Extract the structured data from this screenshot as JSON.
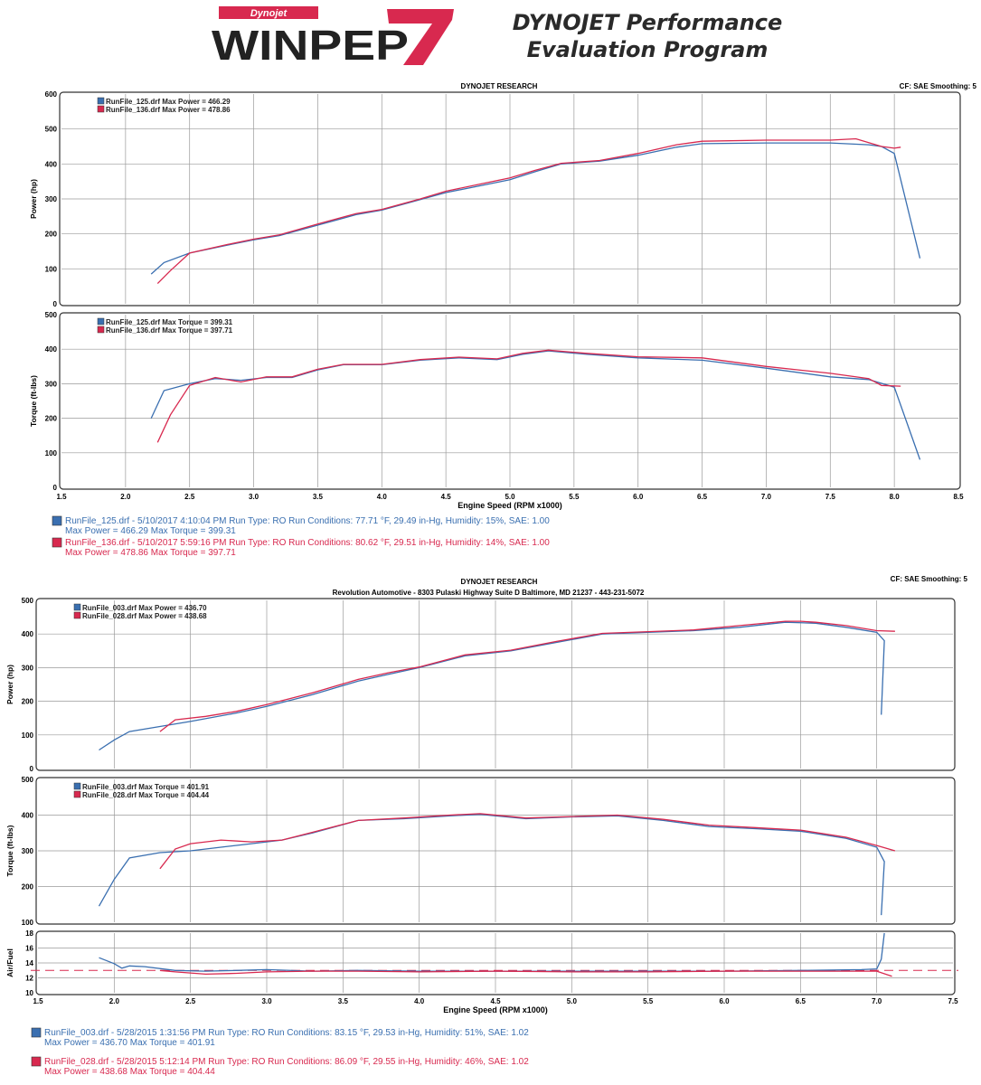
{
  "header": {
    "logo_small": "Dynojet",
    "logo_main": "WINPEP",
    "logo_number": "7",
    "title_line1": "DYNOJET Performance",
    "title_line2": "Evaluation Program"
  },
  "colors": {
    "blue": "#3a6fb0",
    "red": "#d8294f",
    "grid": "#9a9a9a",
    "frame": "#333333"
  },
  "chart_data": [
    {
      "id": "top",
      "type": "line",
      "title": "DYNOJET RESEARCH",
      "subtitle": "",
      "cf_text": "CF: SAE  Smoothing: 5",
      "xlabel": "Engine Speed (RPM x1000)",
      "xlim": [
        1.5,
        8.5
      ],
      "xticks": [
        "1.5",
        "2.0",
        "2.5",
        "3.0",
        "3.5",
        "4.0",
        "4.5",
        "5.0",
        "5.5",
        "6.0",
        "6.5",
        "7.0",
        "7.5",
        "8.0",
        "8.5"
      ],
      "panels": [
        {
          "ylabel": "Power (hp)",
          "ylim": [
            0,
            600
          ],
          "yticks": [
            "0",
            "100",
            "200",
            "300",
            "400",
            "500",
            "600"
          ],
          "legend": [
            {
              "color": "blue",
              "text": "RunFile_125.drf Max Power = 466.29"
            },
            {
              "color": "red",
              "text": "RunFile_136.drf Max Power = 478.86"
            }
          ],
          "series": [
            {
              "name": "RunFile_125.drf",
              "color": "blue",
              "x": [
                2.2,
                2.3,
                2.5,
                2.8,
                3.0,
                3.2,
                3.5,
                3.8,
                4.0,
                4.3,
                4.5,
                4.8,
                5.0,
                5.2,
                5.4,
                5.7,
                6.0,
                6.3,
                6.5,
                7.0,
                7.5,
                7.8,
                7.9,
                8.0,
                8.2
              ],
              "y": [
                85,
                118,
                145,
                168,
                183,
                195,
                225,
                255,
                268,
                298,
                318,
                340,
                355,
                378,
                400,
                408,
                425,
                448,
                458,
                460,
                460,
                455,
                450,
                430,
                130
              ]
            },
            {
              "name": "RunFile_136.drf",
              "color": "red",
              "x": [
                2.25,
                2.35,
                2.5,
                2.8,
                3.0,
                3.2,
                3.5,
                3.8,
                4.0,
                4.3,
                4.5,
                4.8,
                5.0,
                5.2,
                5.4,
                5.7,
                6.0,
                6.3,
                6.5,
                7.0,
                7.5,
                7.7,
                7.9,
                8.0,
                8.05
              ],
              "y": [
                58,
                95,
                145,
                170,
                185,
                197,
                228,
                258,
                270,
                300,
                322,
                345,
                360,
                382,
                402,
                410,
                430,
                455,
                465,
                468,
                468,
                472,
                450,
                445,
                448
              ]
            }
          ]
        },
        {
          "ylabel": "Torque (ft-lbs)",
          "ylim": [
            0,
            500
          ],
          "yticks": [
            "0",
            "100",
            "200",
            "300",
            "400",
            "500"
          ],
          "legend": [
            {
              "color": "blue",
              "text": "RunFile_125.drf Max Torque = 399.31"
            },
            {
              "color": "red",
              "text": "RunFile_136.drf Max Torque = 397.71"
            }
          ],
          "series": [
            {
              "name": "RunFile_125.drf",
              "color": "blue",
              "x": [
                2.2,
                2.3,
                2.5,
                2.7,
                2.9,
                3.1,
                3.3,
                3.5,
                3.7,
                4.0,
                4.3,
                4.6,
                4.9,
                5.1,
                5.3,
                5.6,
                6.0,
                6.5,
                7.0,
                7.5,
                7.8,
                8.0,
                8.2
              ],
              "y": [
                200,
                280,
                300,
                315,
                310,
                318,
                318,
                340,
                355,
                355,
                368,
                375,
                370,
                385,
                395,
                385,
                375,
                368,
                345,
                320,
                312,
                290,
                80
              ]
            },
            {
              "name": "RunFile_136.drf",
              "color": "red",
              "x": [
                2.25,
                2.35,
                2.5,
                2.7,
                2.9,
                3.1,
                3.3,
                3.5,
                3.7,
                4.0,
                4.3,
                4.6,
                4.9,
                5.1,
                5.3,
                5.6,
                6.0,
                6.5,
                7.0,
                7.5,
                7.8,
                7.9,
                8.05
              ],
              "y": [
                130,
                210,
                295,
                318,
                305,
                320,
                320,
                342,
                356,
                356,
                370,
                377,
                372,
                388,
                397,
                388,
                378,
                375,
                350,
                330,
                315,
                295,
                293
              ]
            }
          ]
        }
      ],
      "runs": [
        {
          "color": "blue",
          "line1": "RunFile_125.drf - 5/10/2017 4:10:04 PM  Run Type: RO  Run Conditions: 77.71 °F, 29.49 in-Hg,  Humidity:  15%, SAE: 1.00",
          "line2": "Max Power = 466.29  Max Torque = 399.31"
        },
        {
          "color": "red",
          "line1": "RunFile_136.drf - 5/10/2017 5:59:16 PM  Run Type: RO  Run Conditions: 80.62 °F, 29.51 in-Hg,  Humidity:  14%, SAE: 1.00",
          "line2": "Max Power = 478.86  Max Torque = 397.71"
        }
      ]
    },
    {
      "id": "bottom",
      "type": "line",
      "title": "DYNOJET RESEARCH",
      "subtitle": "Revolution Automotive - 8303 Pulaski Highway Suite D Baltimore, MD 21237 - 443-231-5072",
      "cf_text": "CF: SAE  Smoothing: 5",
      "xlabel": "Engine Speed (RPM x1000)",
      "xlim": [
        1.5,
        7.5
      ],
      "xticks": [
        "1.5",
        "2.0",
        "2.5",
        "3.0",
        "3.5",
        "4.0",
        "4.5",
        "5.0",
        "5.5",
        "6.0",
        "6.5",
        "7.0",
        "7.5"
      ],
      "panels": [
        {
          "ylabel": "Power (hp)",
          "ylim": [
            0,
            500
          ],
          "yticks": [
            "0",
            "100",
            "200",
            "300",
            "400",
            "500"
          ],
          "legend": [
            {
              "color": "blue",
              "text": "RunFile_003.drf Max Power = 436.70"
            },
            {
              "color": "red",
              "text": "RunFile_028.drf Max Power = 438.68"
            }
          ],
          "series": [
            {
              "name": "RunFile_003.drf",
              "color": "blue",
              "x": [
                1.9,
                2.0,
                2.1,
                2.3,
                2.5,
                2.8,
                3.0,
                3.3,
                3.6,
                3.8,
                4.0,
                4.3,
                4.6,
                4.9,
                5.2,
                5.5,
                5.8,
                6.1,
                6.4,
                6.6,
                6.8,
                7.0,
                7.05,
                7.03
              ],
              "y": [
                55,
                85,
                110,
                125,
                140,
                165,
                185,
                220,
                260,
                280,
                300,
                335,
                350,
                375,
                400,
                405,
                410,
                420,
                435,
                432,
                420,
                405,
                380,
                160
              ]
            },
            {
              "name": "RunFile_028.drf",
              "color": "red",
              "x": [
                2.3,
                2.4,
                2.6,
                2.8,
                3.0,
                3.3,
                3.6,
                3.8,
                4.0,
                4.3,
                4.6,
                4.9,
                5.2,
                5.5,
                5.8,
                6.1,
                6.4,
                6.5,
                6.6,
                6.8,
                7.0,
                7.12
              ],
              "y": [
                110,
                145,
                155,
                170,
                190,
                225,
                265,
                285,
                302,
                338,
                352,
                378,
                402,
                407,
                412,
                425,
                438,
                438,
                435,
                425,
                410,
                408
              ]
            }
          ]
        },
        {
          "ylabel": "Torque (ft-lbs)",
          "ylim": [
            100,
            500
          ],
          "yticks": [
            "100",
            "200",
            "300",
            "400",
            "500"
          ],
          "legend": [
            {
              "color": "blue",
              "text": "RunFile_003.drf Max Torque = 401.91"
            },
            {
              "color": "red",
              "text": "RunFile_028.drf Max Torque = 404.44"
            }
          ],
          "series": [
            {
              "name": "RunFile_003.drf",
              "color": "blue",
              "x": [
                1.9,
                2.0,
                2.1,
                2.3,
                2.5,
                2.7,
                2.9,
                3.1,
                3.3,
                3.6,
                3.9,
                4.2,
                4.4,
                4.7,
                5.0,
                5.3,
                5.6,
                5.9,
                6.2,
                6.5,
                6.8,
                7.0,
                7.05,
                7.03
              ],
              "y": [
                145,
                220,
                280,
                295,
                300,
                310,
                320,
                330,
                350,
                385,
                390,
                398,
                402,
                390,
                395,
                398,
                385,
                368,
                362,
                355,
                335,
                310,
                270,
                120
              ]
            },
            {
              "name": "RunFile_028.drf",
              "color": "red",
              "x": [
                2.3,
                2.4,
                2.5,
                2.7,
                2.9,
                3.1,
                3.3,
                3.6,
                3.9,
                4.2,
                4.4,
                4.7,
                5.0,
                5.3,
                5.6,
                5.9,
                6.2,
                6.5,
                6.8,
                7.0,
                7.12
              ],
              "y": [
                250,
                305,
                320,
                330,
                325,
                330,
                352,
                385,
                392,
                400,
                404,
                392,
                396,
                400,
                388,
                372,
                365,
                358,
                338,
                315,
                300
              ]
            }
          ]
        },
        {
          "ylabel": "Air/Fuel",
          "ylim": [
            10,
            18
          ],
          "yticks": [
            "10",
            "12",
            "14",
            "16",
            "18"
          ],
          "legend": [],
          "reference": 13,
          "series": [
            {
              "name": "RunFile_003.drf",
              "color": "blue",
              "x": [
                1.9,
                2.0,
                2.05,
                2.1,
                2.2,
                2.4,
                2.6,
                2.8,
                3.0,
                3.3,
                3.6,
                4.0,
                4.5,
                5.0,
                5.5,
                6.0,
                6.5,
                6.9,
                7.0,
                7.03,
                7.05
              ],
              "y": [
                14.7,
                13.9,
                13.3,
                13.6,
                13.5,
                13.0,
                12.9,
                13.0,
                13.1,
                12.9,
                13.0,
                12.9,
                12.9,
                12.9,
                12.9,
                12.9,
                13.0,
                13.1,
                13.2,
                14.5,
                18
              ]
            },
            {
              "name": "RunFile_028.drf",
              "color": "red",
              "x": [
                2.3,
                2.4,
                2.6,
                2.8,
                3.0,
                3.3,
                3.6,
                4.0,
                4.5,
                5.0,
                5.5,
                6.0,
                6.5,
                7.0,
                7.1
              ],
              "y": [
                13.0,
                12.8,
                12.5,
                12.6,
                12.8,
                12.9,
                12.9,
                12.8,
                12.9,
                12.8,
                12.8,
                12.9,
                12.9,
                12.9,
                12.2
              ]
            }
          ]
        }
      ],
      "runs": [
        {
          "color": "blue",
          "line1": "RunFile_003.drf - 5/28/2015 1:31:56 PM  Run Type: RO  Run Conditions: 83.15 °F, 29.53 in-Hg,  Humidity:  51%, SAE: 1.02",
          "line2": "Max Power = 436.70  Max Torque = 401.91"
        },
        {
          "color": "red",
          "line1": "RunFile_028.drf - 5/28/2015 5:12:14 PM  Run Type: RO  Run Conditions: 86.09 °F, 29.55 in-Hg,  Humidity:  46%, SAE: 1.02",
          "line2": "Max Power = 438.68  Max Torque = 404.44"
        }
      ]
    }
  ]
}
